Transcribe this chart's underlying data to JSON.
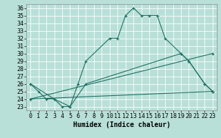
{
  "xlabel": "Humidex (Indice chaleur)",
  "xlim": [
    -0.5,
    23.5
  ],
  "ylim": [
    22.5,
    36.5
  ],
  "xticks": [
    0,
    1,
    2,
    3,
    4,
    5,
    6,
    7,
    8,
    9,
    10,
    11,
    12,
    13,
    14,
    15,
    16,
    17,
    18,
    19,
    20,
    21,
    22,
    23
  ],
  "yticks": [
    23,
    24,
    25,
    26,
    27,
    28,
    29,
    30,
    31,
    32,
    33,
    34,
    35,
    36
  ],
  "bg_color": "#b8e0d8",
  "line_color": "#1a6e60",
  "lines": [
    {
      "x": [
        0,
        1,
        2,
        3,
        4,
        5,
        6,
        7,
        10,
        11,
        12,
        13,
        14,
        15,
        16,
        17,
        19,
        20,
        22,
        23
      ],
      "y": [
        26,
        25,
        24,
        24,
        23,
        23,
        26,
        29,
        32,
        32,
        35,
        36,
        35,
        35,
        35,
        32,
        30,
        29,
        26,
        25
      ]
    },
    {
      "x": [
        0,
        3,
        5,
        7,
        19,
        20,
        22,
        23
      ],
      "y": [
        26,
        24,
        23,
        26,
        30,
        29,
        26,
        25
      ]
    },
    {
      "x": [
        0,
        23
      ],
      "y": [
        24,
        30
      ]
    },
    {
      "x": [
        0,
        23
      ],
      "y": [
        24,
        25
      ]
    }
  ],
  "font_size": 6,
  "xlabel_fontsize": 7,
  "lw": 0.8,
  "marker_size": 3
}
